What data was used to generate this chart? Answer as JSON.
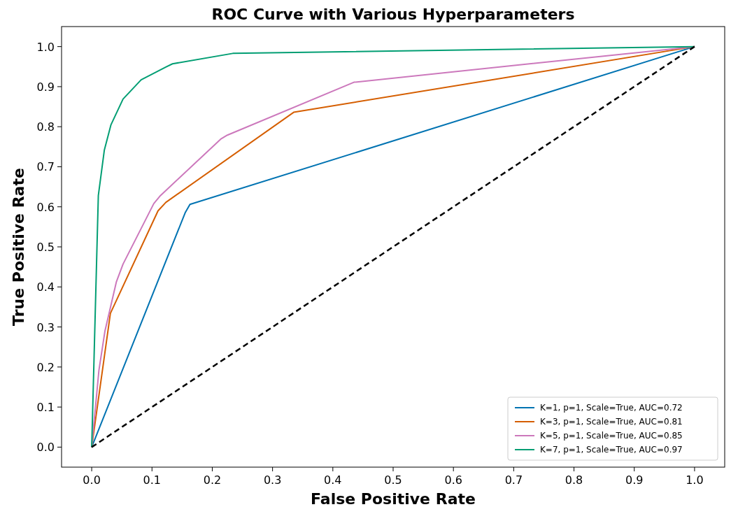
{
  "chart_data": {
    "type": "line",
    "title": "ROC Curve with Various Hyperparameters",
    "xlabel": "False Positive Rate",
    "ylabel": "True Positive Rate",
    "xlim": [
      -0.05,
      1.05
    ],
    "ylim": [
      -0.05,
      1.05
    ],
    "xticks": [
      {
        "value": 0,
        "label": "0.0"
      },
      0.1,
      0.2,
      0.3,
      0.4,
      0.5,
      0.6,
      0.7,
      0.8,
      0.9,
      {
        "value": 1,
        "label": "1.0"
      }
    ],
    "yticks": [
      {
        "value": 0,
        "label": "0.0"
      },
      0.1,
      0.2,
      0.3,
      0.4,
      0.5,
      0.6,
      0.7,
      0.8,
      0.9,
      {
        "value": 1,
        "label": "1.0"
      }
    ],
    "legend": "bottom right",
    "grid": false,
    "series": [
      {
        "name": "K=1, p=1, Scale=True, AUC=0.72",
        "color": "#0173b2",
        "x": [
          0,
          0.155,
          0.163,
          1
        ],
        "values": [
          0,
          0.585,
          0.606,
          1
        ]
      },
      {
        "name": "K=3, p=1, Scale=True, AUC=0.81",
        "color": "#d55e00",
        "x": [
          0,
          0.031,
          0.11,
          0.123,
          0.335,
          1
        ],
        "values": [
          0,
          0.334,
          0.59,
          0.611,
          0.836,
          1
        ]
      },
      {
        "name": "K=5, p=1, Scale=True, AUC=0.85",
        "color": "#cc78bc",
        "x": [
          0,
          0.012,
          0.022,
          0.041,
          0.052,
          0.103,
          0.114,
          0.214,
          0.225,
          0.435,
          1
        ],
        "values": [
          0,
          0.192,
          0.29,
          0.413,
          0.457,
          0.608,
          0.628,
          0.769,
          0.779,
          0.911,
          1
        ]
      },
      {
        "name": "K=7, p=1, Scale=True, AUC=0.97",
        "color": "#029e73",
        "x": [
          0,
          0.011,
          0.021,
          0.032,
          0.052,
          0.082,
          0.123,
          0.134,
          0.234,
          1
        ],
        "values": [
          0,
          0.628,
          0.742,
          0.805,
          0.869,
          0.917,
          0.949,
          0.957,
          0.983,
          1
        ]
      },
      {
        "color": "#000000",
        "line_style": "dashed",
        "x": [
          0,
          1
        ],
        "values": [
          0,
          1
        ]
      }
    ]
  }
}
